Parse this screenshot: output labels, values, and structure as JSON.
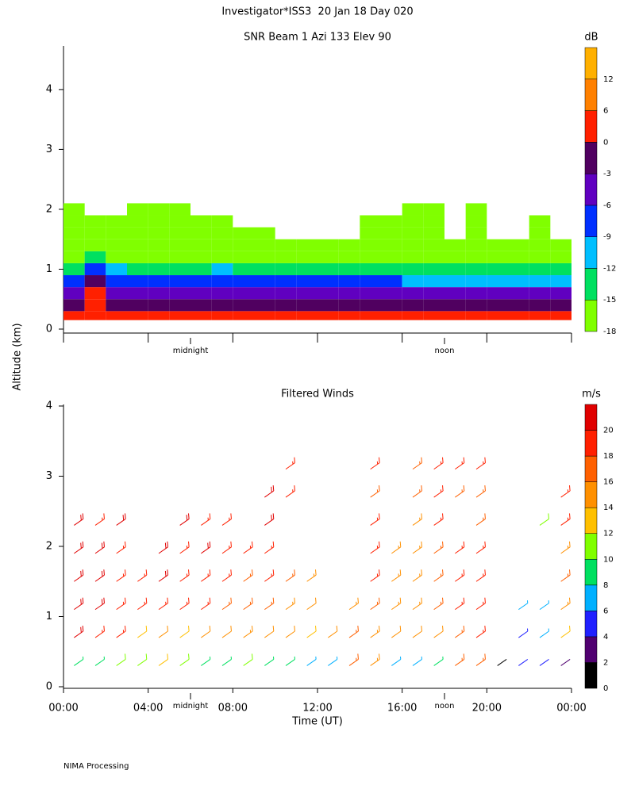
{
  "header": {
    "title": "Investigator*ISS3  20 Jan 18 Day 020",
    "footer": "NIMA Processing"
  },
  "chart_data": [
    {
      "type": "heatmap",
      "title": "SNR Beam 1 Azi 133 Elev 90",
      "ylabel": "Altitude (km)",
      "xlim": [
        0,
        24
      ],
      "ylim": [
        0,
        4.7
      ],
      "xticks": [
        0,
        4,
        8,
        12,
        16,
        20,
        24
      ],
      "yticks": [
        0,
        1,
        2,
        3,
        4
      ],
      "annotations": [
        {
          "text": "midnight",
          "x": 6
        },
        {
          "text": "noon",
          "x": 18
        }
      ],
      "xbins": [
        0,
        1,
        2,
        3,
        4,
        5,
        6,
        7,
        8,
        9,
        10,
        11,
        12,
        13,
        14,
        15,
        16,
        17,
        18,
        19,
        20,
        21,
        22,
        23,
        24
      ],
      "ybins": [
        0.15,
        0.3,
        0.5,
        0.7,
        0.9,
        1.1,
        1.3,
        1.5,
        1.7,
        1.9,
        2.1
      ],
      "values": [
        [
          4,
          -1,
          -5,
          -8,
          -14,
          -16,
          -17,
          -17,
          -17,
          -17
        ],
        [
          5,
          2,
          0,
          -2,
          -9,
          -15,
          -17,
          -16,
          -17,
          null
        ],
        [
          4,
          -1,
          -4,
          -8,
          -12,
          -16,
          -17,
          -16,
          -17,
          null
        ],
        [
          4,
          -1,
          -5,
          -8,
          -13,
          -16,
          -17,
          -16,
          -17,
          -17
        ],
        [
          4,
          -1,
          -5,
          -8,
          -13,
          -16,
          -17,
          -17,
          -17,
          -17
        ],
        [
          4,
          -1,
          -5,
          -8,
          -14,
          -16,
          -17,
          -16,
          -17,
          -17
        ],
        [
          4,
          -1,
          -5,
          -8,
          -13,
          -16,
          -16,
          -17,
          -17,
          null
        ],
        [
          4,
          -1,
          -5,
          -8,
          -12,
          -16,
          -17,
          -17,
          -17,
          null
        ],
        [
          3,
          -1,
          -4,
          -9,
          -13,
          -16,
          -17,
          -17,
          null,
          null
        ],
        [
          3,
          -1,
          -4,
          -8,
          -13,
          -16,
          -17,
          -17,
          null,
          null
        ],
        [
          3,
          -1,
          -5,
          -8,
          -13,
          -16,
          -17,
          null,
          null,
          null
        ],
        [
          3,
          -1,
          -5,
          -8,
          -13,
          -16,
          -17,
          null,
          null,
          null
        ],
        [
          3,
          -2,
          -5,
          -9,
          -14,
          -16,
          -17,
          null,
          null,
          null
        ],
        [
          3,
          -2,
          -5,
          -9,
          -13,
          -16,
          -17,
          null,
          null,
          null
        ],
        [
          3,
          -2,
          -6,
          -9,
          -14,
          -16,
          -17,
          -17,
          -17,
          null
        ],
        [
          3,
          -2,
          -6,
          -9,
          -13,
          -16,
          -17,
          -17,
          -17,
          null
        ],
        [
          3,
          -2,
          -6,
          -10,
          -13,
          -16,
          -17,
          -17,
          -16,
          -16
        ],
        [
          3,
          -2,
          -6,
          -10,
          -13,
          -16,
          -17,
          -17,
          -16,
          -17
        ],
        [
          3,
          -2,
          -6,
          -10,
          -13,
          -16,
          -17,
          null,
          null,
          null
        ],
        [
          3,
          -2,
          -6,
          -10,
          -13,
          -16,
          -17,
          -17,
          -17,
          -17
        ],
        [
          3,
          -2,
          -6,
          -10,
          -13,
          -16,
          -17,
          null,
          null,
          null
        ],
        [
          3,
          -2,
          -6,
          -10,
          -13,
          -16,
          -17,
          null,
          null,
          null
        ],
        [
          3,
          -2,
          -6,
          -10,
          -13,
          -16,
          -17,
          -17,
          -17,
          null
        ],
        [
          3,
          -2,
          -6,
          -10,
          -13,
          -16,
          -17,
          null,
          null,
          null
        ]
      ],
      "colorbar": {
        "label": "dB",
        "bounds": [
          -18,
          -15,
          -12,
          -9,
          -6,
          -3,
          0,
          6,
          12,
          18
        ],
        "colors": [
          "#80ff00",
          "#00e060",
          "#00bfff",
          "#0030ff",
          "#6000c0",
          "#500060",
          "#ff2000",
          "#ff8000",
          "#ffb000"
        ],
        "ticks": [
          -18,
          -15,
          -12,
          -9,
          -6,
          -3,
          0,
          6,
          12
        ]
      }
    },
    {
      "type": "barbs",
      "title": "Filtered Winds",
      "xlabel": "Time (UT)",
      "xlim": [
        0,
        24
      ],
      "ylim": [
        0,
        4
      ],
      "xticks": [
        {
          "value": 0,
          "label": "00:00"
        },
        {
          "value": 4,
          "label": "04:00"
        },
        {
          "value": 8,
          "label": "08:00"
        },
        {
          "value": 12,
          "label": "12:00"
        },
        {
          "value": 16,
          "label": "16:00"
        },
        {
          "value": 20,
          "label": "20:00"
        },
        {
          "value": 24,
          "label": "00:00"
        }
      ],
      "yticks": [
        0,
        1,
        2,
        3,
        4
      ],
      "annotations": [
        {
          "text": "midnight",
          "x": 6
        },
        {
          "text": "noon",
          "x": 18
        }
      ],
      "x": [
        0.5,
        1.5,
        2.5,
        3.5,
        4.5,
        5.5,
        6.5,
        7.5,
        8.5,
        9.5,
        10.5,
        11.5,
        12.5,
        13.5,
        14.5,
        15.5,
        16.5,
        17.5,
        18.5,
        19.5,
        20.5,
        21.5,
        22.5,
        23.5
      ],
      "levels": [
        0.3,
        0.7,
        1.1,
        1.5,
        1.9,
        2.3,
        2.7,
        3.1
      ],
      "speeds": [
        [
          9,
          20,
          21,
          21,
          20,
          20,
          null,
          null
        ],
        [
          9,
          19,
          20,
          20,
          20,
          19,
          null,
          null
        ],
        [
          10,
          18,
          19,
          19,
          18,
          20,
          null,
          null
        ],
        [
          11,
          13,
          18,
          18,
          null,
          null,
          null,
          null
        ],
        [
          12,
          14,
          19,
          20,
          20,
          null,
          null,
          null
        ],
        [
          10,
          12,
          18,
          19,
          19,
          20,
          null,
          null
        ],
        [
          8,
          14,
          19,
          19,
          20,
          19,
          null,
          null
        ],
        [
          9,
          14,
          16,
          19,
          19,
          19,
          null,
          null
        ],
        [
          10,
          15,
          16,
          17,
          18,
          null,
          null,
          null
        ],
        [
          8,
          14,
          17,
          18,
          19,
          20,
          20,
          null
        ],
        [
          8,
          14,
          15,
          16,
          null,
          null,
          18,
          18
        ],
        [
          7,
          13,
          14,
          15,
          null,
          null,
          null,
          null
        ],
        [
          7,
          14,
          null,
          null,
          null,
          null,
          null,
          null
        ],
        [
          16,
          17,
          15,
          null,
          null,
          null,
          null,
          null
        ],
        [
          15,
          15,
          16,
          18,
          19,
          18,
          17,
          18
        ],
        [
          7,
          14,
          15,
          15,
          15,
          null,
          null,
          null
        ],
        [
          7,
          14,
          15,
          15,
          15,
          15,
          16,
          17
        ],
        [
          8,
          14,
          16,
          17,
          17,
          18,
          18,
          19
        ],
        [
          17,
          17,
          19,
          18,
          18,
          null,
          17,
          19
        ],
        [
          16,
          18,
          19,
          18,
          18,
          17,
          17,
          18
        ],
        [
          1,
          null,
          null,
          null,
          null,
          null,
          null,
          null
        ],
        [
          4,
          5,
          7,
          null,
          null,
          null,
          null,
          null
        ],
        [
          4,
          7,
          7,
          null,
          null,
          10,
          null,
          null
        ],
        [
          3,
          13,
          15,
          16,
          15,
          19,
          19,
          null
        ]
      ],
      "colorbar": {
        "label": "m/s",
        "bounds": [
          0,
          2,
          4,
          6,
          8,
          10,
          12,
          14,
          16,
          18,
          20,
          22
        ],
        "colors": [
          "#000000",
          "#500070",
          "#2020ff",
          "#00b0ff",
          "#00e060",
          "#80ff00",
          "#ffc000",
          "#ff9000",
          "#ff6000",
          "#ff2000",
          "#e00000"
        ],
        "ticks": [
          0,
          2,
          4,
          6,
          8,
          10,
          12,
          14,
          16,
          18,
          20
        ]
      }
    }
  ]
}
